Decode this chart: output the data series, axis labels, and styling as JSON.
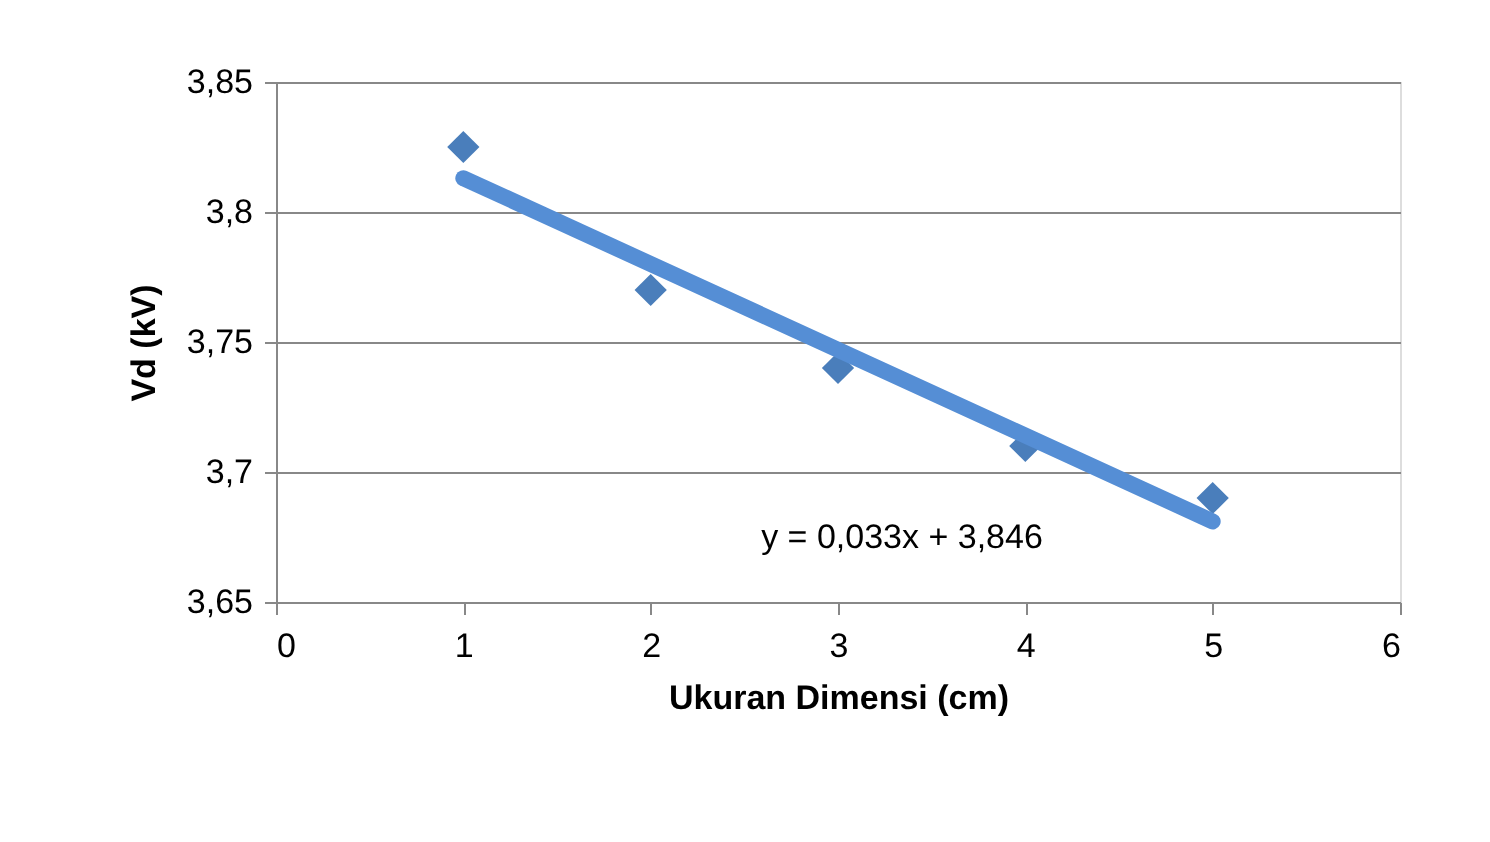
{
  "chart_data": {
    "type": "scatter",
    "xlabel": "Ukuran Dimensi (cm)",
    "ylabel": "Vd (kV)",
    "x": [
      1,
      2,
      3,
      4,
      5
    ],
    "series": [
      {
        "color": "#4a7ebb",
        "values": [
          3.825,
          3.77,
          3.74,
          3.71,
          3.69
        ],
        "marker": "diamond"
      },
      {
        "type": "line",
        "color": "#558ed5",
        "x": [
          1,
          5
        ],
        "values": [
          3.813,
          3.681
        ],
        "line_style": "solid"
      }
    ],
    "annotations": [
      "y = 0,033x + 3,846"
    ],
    "xlim": [
      0,
      6
    ],
    "xticks": [
      0,
      1,
      2,
      3,
      4,
      5,
      6
    ],
    "ylim": [
      3.65,
      3.85
    ],
    "yticks": [
      {
        "value": 3.65,
        "label": "3,65"
      },
      {
        "value": 3.7,
        "label": "3,7"
      },
      {
        "value": 3.75,
        "label": "3,75"
      },
      {
        "value": 3.8,
        "label": "3,8"
      },
      {
        "value": 3.85,
        "label": "3,85"
      }
    ],
    "grid": "y"
  }
}
